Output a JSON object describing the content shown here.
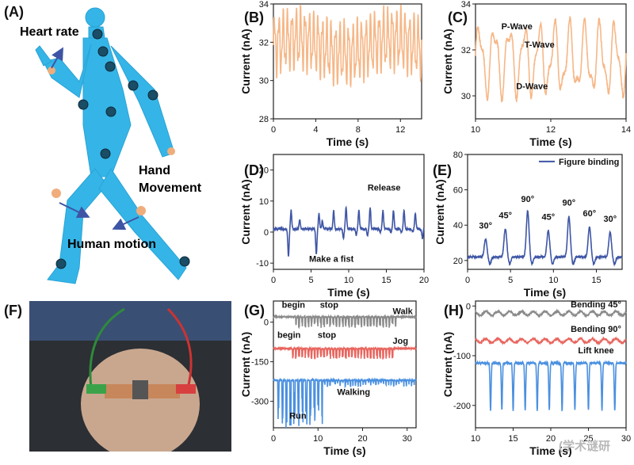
{
  "colors": {
    "orange": "#f6b787",
    "navy": "#3e55a5",
    "gray": "#8a8a8a",
    "red": "#e8655e",
    "blue": "#4a90e0",
    "cyan": "#33b4e6"
  },
  "panels": {
    "A": {
      "label": "(A)",
      "annotations": [
        "Heart rate",
        "Hand Movement",
        "Human motion"
      ]
    },
    "F": {
      "label": "(F)"
    }
  },
  "watermark": "(学术谜研",
  "chart_data": [
    {
      "id": "B",
      "label": "(B)",
      "type": "line",
      "xlabel": "Time (s)",
      "ylabel": "Current (nA)",
      "xlim": [
        0,
        14
      ],
      "ylim": [
        28,
        34
      ],
      "xticks": [
        0,
        4,
        8,
        12
      ],
      "yticks": [
        28,
        30,
        32,
        34
      ],
      "series": [
        {
          "color": "#f6b787",
          "style": "orange_osc",
          "base": 31.8,
          "amp": 1.3,
          "peaks": 34
        }
      ],
      "annotations": []
    },
    {
      "id": "C",
      "label": "(C)",
      "type": "line",
      "xlabel": "Time (s)",
      "ylabel": "Current (nA)",
      "xlim": [
        10,
        14
      ],
      "ylim": [
        29,
        34
      ],
      "xticks": [
        10,
        12,
        14
      ],
      "yticks": [
        30,
        32,
        34
      ],
      "series": [
        {
          "color": "#f6b787",
          "style": "pqrst",
          "base": 31.6,
          "amp": 1.3,
          "peaks": 10
        }
      ],
      "annotations": [
        {
          "text": "P-Wave",
          "x": 11.1,
          "y": 32.9
        },
        {
          "text": "T-Wave",
          "x": 11.7,
          "y": 32.1
        },
        {
          "text": "D-Wave",
          "x": 11.5,
          "y": 30.3
        }
      ]
    },
    {
      "id": "D",
      "label": "(D)",
      "type": "line",
      "xlabel": "Time (s)",
      "ylabel": "Current (nA)",
      "xlim": [
        0,
        20
      ],
      "ylim": [
        -12,
        25
      ],
      "xticks": [
        0,
        5,
        10,
        15,
        20
      ],
      "yticks": [
        -10,
        0,
        10,
        20
      ],
      "series": [
        {
          "color": "#3e55a5",
          "style": "fist",
          "base": 1,
          "events": [
            [
              2,
              -9,
              6
            ],
            [
              3.5,
              3,
              0
            ],
            [
              5.7,
              -8,
              5
            ],
            [
              6.5,
              2.5,
              0
            ],
            [
              8,
              6,
              0
            ],
            [
              9.3,
              -3,
              7
            ],
            [
              11,
              -2,
              6
            ],
            [
              12.5,
              -2,
              7
            ],
            [
              14.2,
              -1,
              6
            ],
            [
              15.6,
              -1,
              6
            ],
            [
              17,
              -1,
              6
            ],
            [
              18.5,
              -1,
              5
            ],
            [
              19.8,
              -3,
              4
            ]
          ]
        }
      ],
      "annotations": [
        {
          "text": "Release",
          "x": 14.7,
          "y": 13.4
        },
        {
          "text": "Make a fist",
          "x": 7.7,
          "y": -9.6
        }
      ]
    },
    {
      "id": "E",
      "label": "(E)",
      "type": "line",
      "xlabel": "Time (s)",
      "ylabel": "Current (nA)",
      "xlim": [
        0,
        18
      ],
      "ylim": [
        15,
        80
      ],
      "xticks": [
        0,
        5,
        10,
        15
      ],
      "yticks": [
        20,
        40,
        60,
        80
      ],
      "series": [
        {
          "name": "Figure binding",
          "color": "#3e55a5",
          "style": "bend",
          "base": 22,
          "events": [
            [
              2.1,
              32
            ],
            [
              4.4,
              38
            ],
            [
              7,
              48
            ],
            [
              9.4,
              37
            ],
            [
              11.8,
              45
            ],
            [
              14.2,
              39
            ],
            [
              16.6,
              36
            ]
          ]
        }
      ],
      "annotations": [
        {
          "text": "30°",
          "x": 2.1,
          "y": 38
        },
        {
          "text": "45°",
          "x": 4.4,
          "y": 44
        },
        {
          "text": "90°",
          "x": 7,
          "y": 53
        },
        {
          "text": "45°",
          "x": 9.4,
          "y": 43
        },
        {
          "text": "90°",
          "x": 11.8,
          "y": 51
        },
        {
          "text": "60°",
          "x": 14.2,
          "y": 45
        },
        {
          "text": "30°",
          "x": 16.6,
          "y": 42
        }
      ]
    },
    {
      "id": "G",
      "label": "(G)",
      "type": "line",
      "xlabel": "Time (s)",
      "ylabel": "Current (nA)",
      "xlim": [
        0,
        32
      ],
      "ylim": [
        -400,
        80
      ],
      "xticks": [
        0,
        10,
        20,
        30
      ],
      "yticks": [
        -300,
        -150,
        0
      ],
      "series": [
        {
          "name": "Walk",
          "color": "#8a8a8a",
          "style": "gait",
          "base": 20,
          "start": 5,
          "end": 28,
          "depth": 40
        },
        {
          "name": "Jog",
          "color": "#e8655e",
          "style": "gait",
          "base": -100,
          "start": 4,
          "end": 27,
          "depth": 40
        },
        {
          "name": "Walking",
          "color": "#4a90e0",
          "style": "run",
          "base": -220,
          "start": 0,
          "end": 32,
          "depth": 150
        }
      ],
      "annotations": [
        {
          "text": "begin",
          "x": 4.5,
          "y": 55
        },
        {
          "text": "stop",
          "x": 12.5,
          "y": 55
        },
        {
          "text": "Walk",
          "x": 29,
          "y": 30
        },
        {
          "text": "begin",
          "x": 3.5,
          "y": -60
        },
        {
          "text": "stop",
          "x": 12,
          "y": -60
        },
        {
          "text": "Jog",
          "x": 28.5,
          "y": -82
        },
        {
          "text": "Run",
          "x": 5.5,
          "y": -365
        },
        {
          "text": "Walking",
          "x": 18,
          "y": -275
        }
      ]
    },
    {
      "id": "H",
      "label": "(H)",
      "type": "line",
      "xlabel": "Time (s)",
      "ylabel": "Current (nA)",
      "xlim": [
        10,
        30
      ],
      "ylim": [
        -245,
        10
      ],
      "xticks": [
        10,
        15,
        20,
        25,
        30
      ],
      "xticklabels": [
        "10",
        "15",
        "20",
        "25",
        "30"
      ],
      "yticks": [
        -200,
        -100,
        0
      ],
      "series": [
        {
          "name": "Bending 45°",
          "color": "#8a8a8a",
          "style": "flat",
          "base": -15,
          "amp": 4
        },
        {
          "name": "Bending 90°",
          "color": "#e8655e",
          "style": "flat",
          "base": -70,
          "amp": 4
        },
        {
          "name": "Lift knee",
          "color": "#4a90e0",
          "style": "knee",
          "base": -115,
          "depth": 95
        }
      ],
      "annotations": [
        {
          "text": "Bending 45°",
          "x": 26,
          "y": -3
        },
        {
          "text": "Bending 90°",
          "x": 26,
          "y": -52
        },
        {
          "text": "Lift knee",
          "x": 26,
          "y": -95
        }
      ]
    }
  ]
}
